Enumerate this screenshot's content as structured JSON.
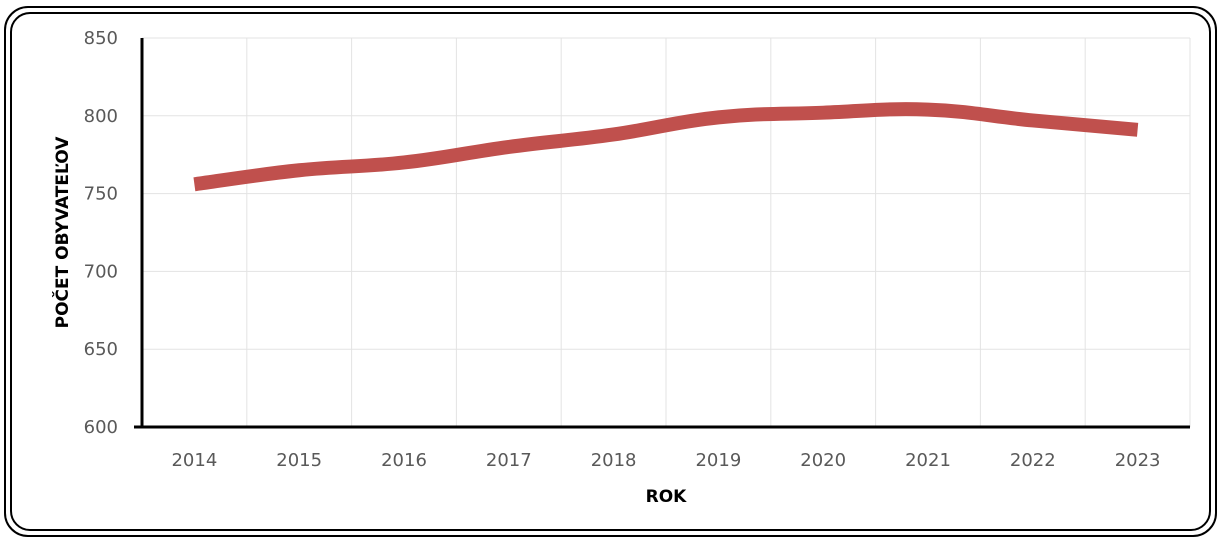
{
  "chart_data": {
    "type": "line",
    "title": "",
    "xlabel": "ROK",
    "ylabel": "POČET OBYVATEĽOV",
    "categories": [
      "2014",
      "2015",
      "2016",
      "2017",
      "2018",
      "2019",
      "2020",
      "2021",
      "2022",
      "2023"
    ],
    "series": [
      {
        "values": [
          756,
          765,
          770,
          780,
          788,
          799,
          802,
          804,
          797,
          791
        ],
        "color": "#c0504d"
      }
    ],
    "ylim": [
      600,
      850
    ],
    "yticks": [
      "600",
      "650",
      "700",
      "750",
      "800",
      "850"
    ],
    "grid": true,
    "smooth": true,
    "legend": "none"
  }
}
